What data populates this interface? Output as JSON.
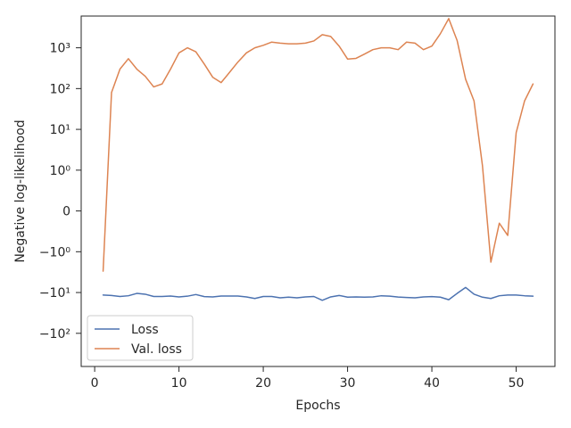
{
  "chart_data": {
    "type": "line",
    "xlabel": "Epochs",
    "ylabel": "Negative log-likelihood",
    "y_scale": "symlog (linthresh 1)",
    "xlim": [
      -1.6,
      54.6
    ],
    "ylim": [
      -650,
      6000
    ],
    "grid": false,
    "legend_position": "lower-left",
    "x_ticks": [
      0,
      10,
      20,
      30,
      40,
      50
    ],
    "x_tick_labels": [
      "0",
      "10",
      "20",
      "30",
      "40",
      "50"
    ],
    "y_ticks": [
      1000,
      100,
      10,
      1,
      0,
      -1,
      -10,
      -100
    ],
    "y_tick_labels": [
      "10³",
      "10²",
      "10¹",
      "10⁰",
      "0",
      "−10⁰",
      "−10¹",
      "−10²"
    ],
    "x": [
      1,
      2,
      3,
      4,
      5,
      6,
      7,
      8,
      9,
      10,
      11,
      12,
      13,
      14,
      15,
      16,
      17,
      18,
      19,
      20,
      21,
      22,
      23,
      24,
      25,
      26,
      27,
      28,
      29,
      30,
      31,
      32,
      33,
      34,
      35,
      36,
      37,
      38,
      39,
      40,
      41,
      42,
      43,
      44,
      45,
      46,
      47,
      48,
      49,
      50,
      51,
      52
    ],
    "series": [
      {
        "name": "Loss",
        "color": "#4c72b0",
        "values": [
          -11.5,
          -11.8,
          -12.5,
          -12.0,
          -10.5,
          -11.0,
          -12.5,
          -12.5,
          -12.2,
          -12.8,
          -12.3,
          -11.2,
          -12.6,
          -12.8,
          -12.2,
          -12.2,
          -12.2,
          -12.8,
          -14.0,
          -12.5,
          -12.5,
          -13.5,
          -13.0,
          -13.5,
          -12.8,
          -12.5,
          -15.5,
          -12.8,
          -11.8,
          -13.0,
          -12.8,
          -13.0,
          -12.8,
          -12.0,
          -12.3,
          -12.9,
          -13.2,
          -13.5,
          -12.8,
          -12.6,
          -13.0,
          -15.0,
          -10.5,
          -7.5,
          -11.0,
          -13.0,
          -14.0,
          -12.0,
          -11.5,
          -11.5,
          -12.0,
          -12.3
        ]
      },
      {
        "name": "Val. loss",
        "color": "#dd8452",
        "values": [
          -3.0,
          80,
          300,
          540,
          300,
          200,
          110,
          130,
          300,
          750,
          1000,
          800,
          400,
          190,
          140,
          250,
          450,
          750,
          1000,
          1150,
          1380,
          1300,
          1250,
          1250,
          1300,
          1470,
          2100,
          1900,
          1100,
          530,
          550,
          700,
          900,
          1000,
          1000,
          900,
          1380,
          1300,
          900,
          1100,
          2200,
          5200,
          1500,
          170,
          50,
          1.3,
          -1.8,
          -0.3,
          -0.6,
          8.3,
          50,
          130
        ]
      }
    ]
  }
}
